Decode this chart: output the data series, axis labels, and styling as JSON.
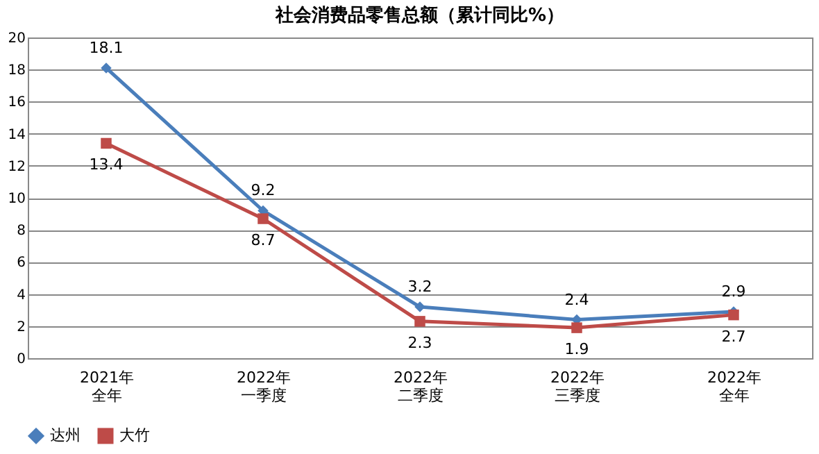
{
  "chart_data": {
    "type": "line",
    "title": "社会消费品零售总额（累计同比%）",
    "categories": [
      "2021年全年",
      "2022年一季度",
      "2022年二季度",
      "2022年三季度",
      "2022年全年"
    ],
    "series": [
      {
        "name": "达州",
        "color": "#4a7ebb",
        "marker": "diamond",
        "values": [
          18.1,
          9.2,
          3.2,
          2.4,
          2.9
        ]
      },
      {
        "name": "大竹",
        "color": "#be4b48",
        "marker": "square",
        "values": [
          13.4,
          8.7,
          2.3,
          1.9,
          2.7
        ]
      }
    ],
    "ylim": [
      0,
      20
    ],
    "yticks": [
      0,
      2,
      4,
      6,
      8,
      10,
      12,
      14,
      16,
      18,
      20
    ],
    "grid": "y",
    "legend": "bottom",
    "data_labels": true,
    "line_style": "solid"
  }
}
